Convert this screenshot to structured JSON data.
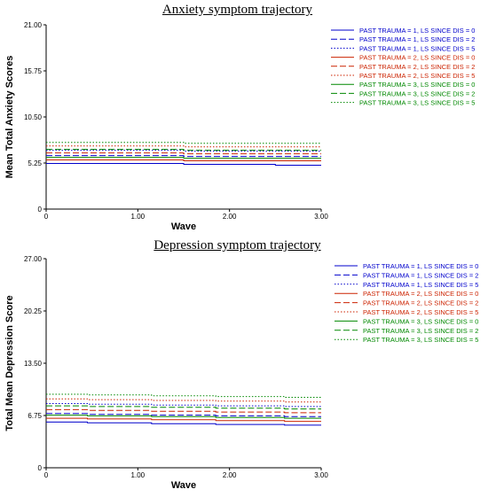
{
  "chart_data": [
    {
      "type": "line",
      "title": "Anxiety symptom trajectory",
      "xlabel": "Wave",
      "ylabel": "Mean Total Anxiety Scores",
      "xlim": [
        0,
        3
      ],
      "ylim": [
        0,
        21
      ],
      "xticks": [
        "0",
        "1.00",
        "2.00",
        "3.00"
      ],
      "yticks": [
        "0",
        "5.25",
        "10.50",
        "15.75",
        "21.00"
      ],
      "legend_position": "right",
      "grid": false,
      "series": [
        {
          "name": "PAST TRAUMA = 1, LS SINCE DIS = 0",
          "color": "#0000cc",
          "dash": "solid",
          "x": [
            0,
            1.5,
            1.5,
            2.5,
            2.5,
            3
          ],
          "y": [
            5.2,
            5.2,
            5.1,
            5.1,
            5.0,
            5.0
          ]
        },
        {
          "name": "PAST TRAUMA = 1, LS SINCE DIS = 2",
          "color": "#0000cc",
          "dash": "dashed",
          "x": [
            0,
            1.5,
            1.5,
            3
          ],
          "y": [
            6.1,
            6.1,
            6.0,
            6.0
          ]
        },
        {
          "name": "PAST TRAUMA = 1, LS SINCE DIS = 5",
          "color": "#0000cc",
          "dash": "dotted",
          "x": [
            0,
            1.5,
            1.5,
            3
          ],
          "y": [
            6.7,
            6.7,
            6.6,
            6.6
          ]
        },
        {
          "name": "PAST TRAUMA = 2, LS SINCE DIS = 0",
          "color": "#cc2200",
          "dash": "solid",
          "x": [
            0,
            1.5,
            1.5,
            3
          ],
          "y": [
            5.6,
            5.6,
            5.5,
            5.5
          ]
        },
        {
          "name": "PAST TRAUMA = 2, LS SINCE DIS = 2",
          "color": "#cc2200",
          "dash": "dashed",
          "x": [
            0,
            1.5,
            1.5,
            3
          ],
          "y": [
            6.4,
            6.4,
            6.3,
            6.3
          ]
        },
        {
          "name": "PAST TRAUMA = 2, LS SINCE DIS = 5",
          "color": "#cc2200",
          "dash": "dotted",
          "x": [
            0,
            1.5,
            1.5,
            3
          ],
          "y": [
            7.2,
            7.2,
            7.1,
            7.1
          ]
        },
        {
          "name": "PAST TRAUMA = 3, LS SINCE DIS = 0",
          "color": "#008800",
          "dash": "solid",
          "x": [
            0,
            1.5,
            1.5,
            3
          ],
          "y": [
            5.9,
            5.9,
            5.8,
            5.8
          ]
        },
        {
          "name": "PAST TRAUMA = 3, LS SINCE DIS = 2",
          "color": "#008800",
          "dash": "dashed",
          "x": [
            0,
            1.5,
            1.5,
            3
          ],
          "y": [
            6.8,
            6.8,
            6.7,
            6.7
          ]
        },
        {
          "name": "PAST TRAUMA = 3, LS SINCE DIS = 5",
          "color": "#008800",
          "dash": "dotted",
          "x": [
            0,
            1.5,
            1.5,
            3
          ],
          "y": [
            7.6,
            7.6,
            7.5,
            7.5
          ]
        }
      ]
    },
    {
      "type": "line",
      "title": "Depression symptom trajectory",
      "xlabel": "Wave",
      "ylabel": "Total Mean Depression Score",
      "xlim": [
        0,
        3
      ],
      "ylim": [
        0,
        27
      ],
      "xticks": [
        "0",
        "1.00",
        "2.00",
        "3.00"
      ],
      "yticks": [
        "0",
        "6.75",
        "13.50",
        "20.25",
        "27.00"
      ],
      "legend_position": "right",
      "grid": false,
      "series": [
        {
          "name": "PAST TRAUMA = 1, LS SINCE DIS = 0",
          "color": "#0000cc",
          "dash": "solid",
          "x": [
            0,
            0.45,
            0.45,
            1.15,
            1.15,
            1.85,
            1.85,
            2.6,
            2.6,
            3
          ],
          "y": [
            5.9,
            5.9,
            5.8,
            5.8,
            5.7,
            5.7,
            5.6,
            5.6,
            5.5,
            5.5
          ]
        },
        {
          "name": "PAST TRAUMA = 1, LS SINCE DIS = 2",
          "color": "#0000cc",
          "dash": "dashed",
          "x": [
            0,
            0.45,
            0.45,
            1.15,
            1.15,
            1.85,
            1.85,
            2.6,
            2.6,
            3
          ],
          "y": [
            7.0,
            7.0,
            6.9,
            6.9,
            6.8,
            6.8,
            6.7,
            6.7,
            6.6,
            6.6
          ]
        },
        {
          "name": "PAST TRAUMA = 1, LS SINCE DIS = 5",
          "color": "#0000cc",
          "dash": "dotted",
          "x": [
            0,
            0.45,
            0.45,
            1.15,
            1.15,
            1.85,
            1.85,
            2.6,
            2.6,
            3
          ],
          "y": [
            8.3,
            8.3,
            8.2,
            8.2,
            8.1,
            8.1,
            8.0,
            8.0,
            7.9,
            7.9
          ]
        },
        {
          "name": "PAST TRAUMA = 2, LS SINCE DIS = 0",
          "color": "#cc2200",
          "dash": "solid",
          "x": [
            0,
            0.45,
            0.45,
            1.15,
            1.15,
            1.85,
            1.85,
            2.6,
            2.6,
            3
          ],
          "y": [
            6.4,
            6.4,
            6.3,
            6.3,
            6.2,
            6.2,
            6.1,
            6.1,
            6.0,
            6.0
          ]
        },
        {
          "name": "PAST TRAUMA = 2, LS SINCE DIS = 2",
          "color": "#cc2200",
          "dash": "dashed",
          "x": [
            0,
            0.45,
            0.45,
            1.15,
            1.15,
            1.85,
            1.85,
            2.6,
            2.6,
            3
          ],
          "y": [
            7.5,
            7.5,
            7.4,
            7.4,
            7.3,
            7.3,
            7.2,
            7.2,
            7.1,
            7.1
          ]
        },
        {
          "name": "PAST TRAUMA = 2, LS SINCE DIS = 5",
          "color": "#cc2200",
          "dash": "dotted",
          "x": [
            0,
            0.45,
            0.45,
            1.15,
            1.15,
            1.85,
            1.85,
            2.6,
            2.6,
            3
          ],
          "y": [
            8.9,
            8.9,
            8.8,
            8.8,
            8.7,
            8.7,
            8.6,
            8.6,
            8.5,
            8.5
          ]
        },
        {
          "name": "PAST TRAUMA = 3, LS SINCE DIS = 0",
          "color": "#008800",
          "dash": "solid",
          "x": [
            0,
            0.45,
            0.45,
            1.15,
            1.15,
            1.85,
            1.85,
            2.6,
            2.6,
            3
          ],
          "y": [
            6.8,
            6.8,
            6.7,
            6.7,
            6.6,
            6.6,
            6.5,
            6.5,
            6.4,
            6.4
          ]
        },
        {
          "name": "PAST TRAUMA = 3, LS SINCE DIS = 2",
          "color": "#008800",
          "dash": "dashed",
          "x": [
            0,
            0.45,
            0.45,
            1.15,
            1.15,
            1.85,
            1.85,
            2.6,
            2.6,
            3
          ],
          "y": [
            8.0,
            8.0,
            7.9,
            7.9,
            7.8,
            7.8,
            7.7,
            7.7,
            7.6,
            7.6
          ]
        },
        {
          "name": "PAST TRAUMA = 3, LS SINCE DIS = 5",
          "color": "#008800",
          "dash": "dotted",
          "x": [
            0,
            0.45,
            0.45,
            1.15,
            1.15,
            1.85,
            1.85,
            2.6,
            2.6,
            3
          ],
          "y": [
            9.5,
            9.5,
            9.4,
            9.4,
            9.3,
            9.3,
            9.2,
            9.2,
            9.1,
            9.1
          ]
        }
      ]
    }
  ]
}
